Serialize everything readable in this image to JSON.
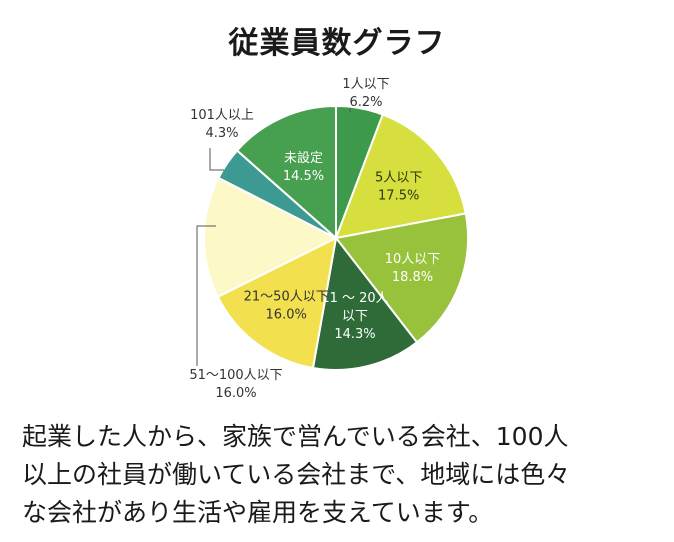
{
  "chart_data": {
    "type": "pie",
    "title": "従業員数グラフ",
    "slices": [
      {
        "label": "1人以下",
        "value_text": "6.2%",
        "value": 6.2,
        "color": "#3c9a4a",
        "label_inside": false
      },
      {
        "label": "5人以下",
        "value_text": "17.5%",
        "value": 17.5,
        "color": "#d6df3e",
        "label_inside": true
      },
      {
        "label": "10人以下",
        "value_text": "18.8%",
        "value": 18.8,
        "color": "#98c23c",
        "label_inside": true
      },
      {
        "label": "11 〜 20人以下",
        "value_text": "14.3%",
        "value": 14.3,
        "color": "#2e6b38",
        "label_inside": true
      },
      {
        "label": "21〜50人以下",
        "value_text": "16.0%",
        "value": 16.0,
        "color": "#f2e04e",
        "label_inside": true
      },
      {
        "label": "51〜100人以下",
        "value_text": "16.0%",
        "value": 16.0,
        "color": "#fcf8c8",
        "label_inside": false
      },
      {
        "label": "101人以上",
        "value_text": "4.3%",
        "value": 4.3,
        "color": "#3d9a92",
        "label_inside": false
      },
      {
        "label": "未設定",
        "value_text": "14.5%",
        "value": 14.5,
        "color": "#47a04f",
        "label_inside": true
      }
    ]
  },
  "caption": {
    "line1": "起業した人から、家族で営んでいる会社、100人",
    "line2": "以上の社員が働いている会社まで、地域には色々",
    "line3": "な会社があり生活や雇用を支えています。"
  }
}
